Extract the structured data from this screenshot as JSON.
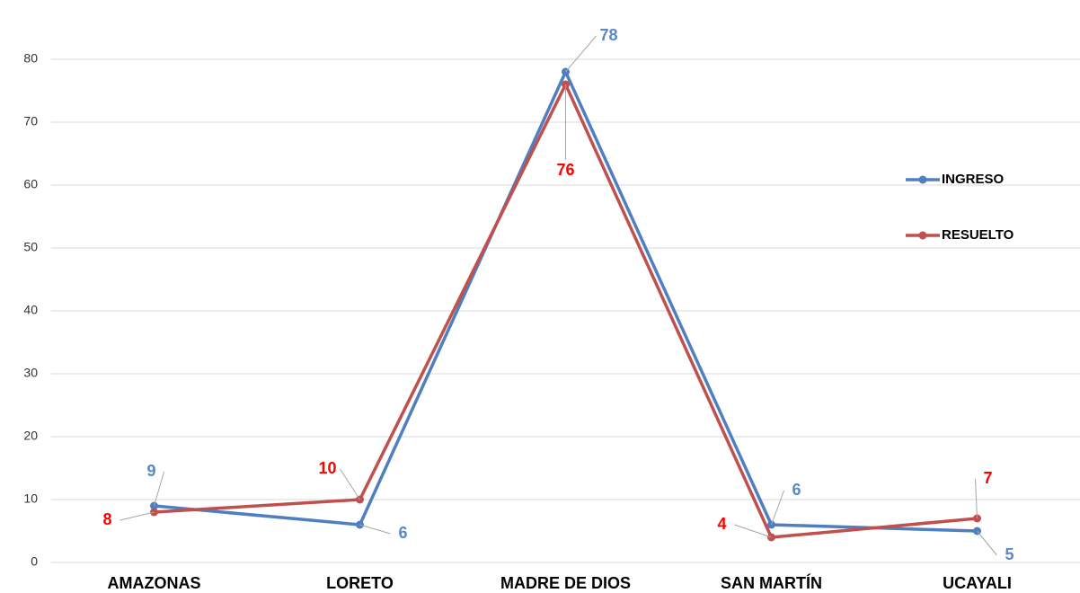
{
  "chart_data": {
    "type": "line",
    "categories": [
      "AMAZONAS",
      "LORETO",
      "MADRE DE DIOS",
      "SAN MARTÍN",
      "UCAYALI"
    ],
    "series": [
      {
        "name": "INGRESO",
        "color": "#4f7fc0",
        "label_color": "#5b87c5",
        "values": [
          9,
          6,
          78,
          6,
          5
        ]
      },
      {
        "name": "RESUELTO",
        "color": "#c0504d",
        "label_color": "#ff0000",
        "values": [
          8,
          10,
          76,
          4,
          7
        ]
      }
    ],
    "ylim": [
      0,
      80
    ],
    "yticks": [
      0,
      10,
      20,
      30,
      40,
      50,
      60,
      70,
      80
    ],
    "grid": true,
    "legend": "right"
  }
}
